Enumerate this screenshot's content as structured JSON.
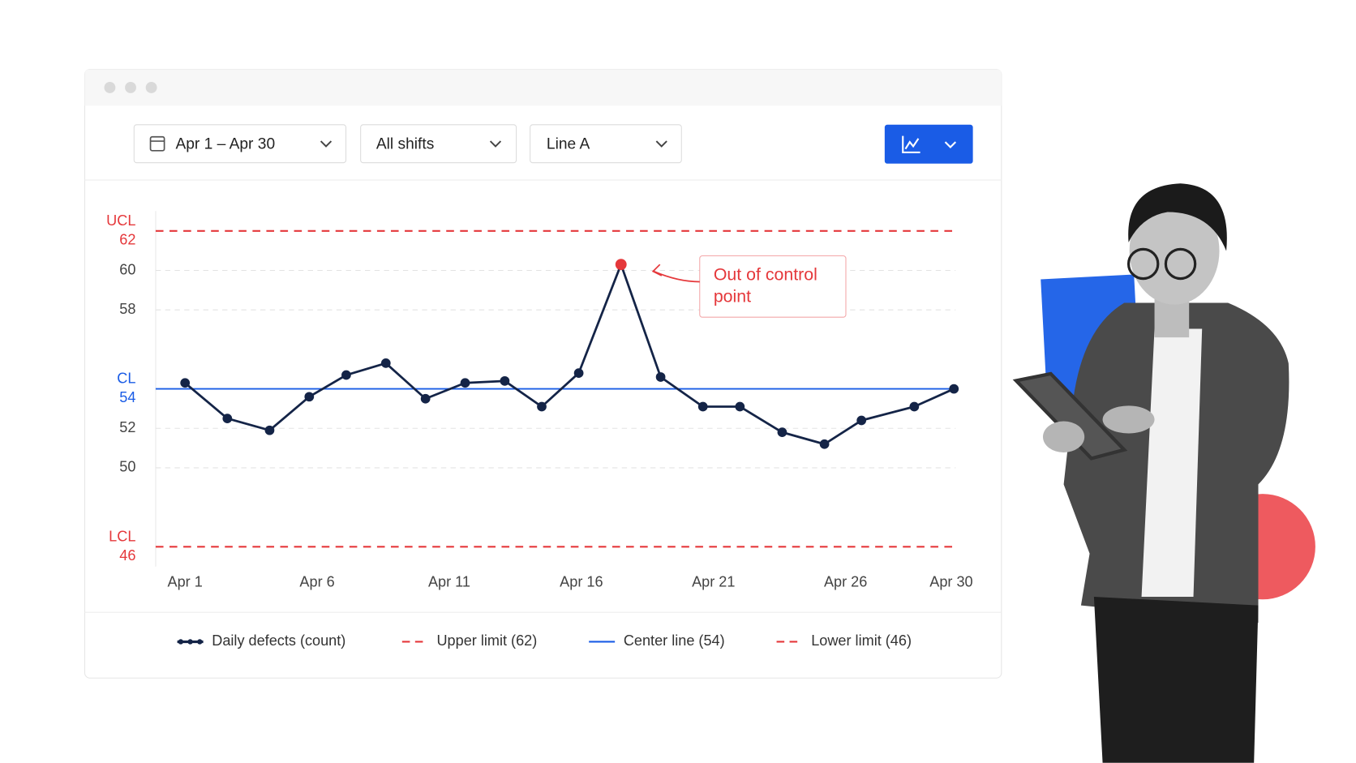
{
  "filters": {
    "date_range": "Apr 1 – Apr 30",
    "shift": "All shifts",
    "line": "Line A"
  },
  "chart_data": {
    "type": "line",
    "x": [
      1,
      2.6,
      4.2,
      5.7,
      7.1,
      8.6,
      10.1,
      11.6,
      13.1,
      14.5,
      15.9,
      17.5,
      19.0,
      20.6,
      22.0,
      23.6,
      25.2,
      26.6,
      28.6,
      30.1
    ],
    "series": [
      {
        "name": "Daily defects (count)",
        "color": "#142447",
        "values": [
          54.3,
          52.5,
          51.9,
          53.6,
          54.7,
          55.3,
          53.5,
          54.3,
          54.4,
          53.1,
          54.8,
          60.3,
          54.6,
          53.1,
          53.1,
          51.8,
          51.2,
          52.4,
          53.1,
          54.0
        ]
      }
    ],
    "highlight": {
      "index": 11,
      "color": "#e5383b",
      "annotation": "Out of control point"
    },
    "limits": [
      {
        "label": "UCL",
        "value": 62,
        "name": "Upper limit (62)",
        "color": "#e5383b",
        "dashed": true
      },
      {
        "label": "CL",
        "value": 54,
        "name": "Center line (54)",
        "color": "#1a5ce6",
        "dashed": false
      },
      {
        "label": "LCL",
        "value": 46,
        "name": "Lower limit (46)",
        "color": "#e5383b",
        "dashed": true
      }
    ],
    "xlim": [
      1,
      30
    ],
    "xticks": [
      {
        "value": 1,
        "label": "Apr 1"
      },
      {
        "value": 6,
        "label": "Apr 6"
      },
      {
        "value": 11,
        "label": "Apr 11"
      },
      {
        "value": 16,
        "label": "Apr 16"
      },
      {
        "value": 21,
        "label": "Apr 21"
      },
      {
        "value": 26,
        "label": "Apr 26"
      },
      {
        "value": 30,
        "label": "Apr 30"
      }
    ],
    "ylim": [
      45,
      63
    ],
    "yticks": [
      50,
      52,
      58,
      60
    ],
    "grid": true
  }
}
